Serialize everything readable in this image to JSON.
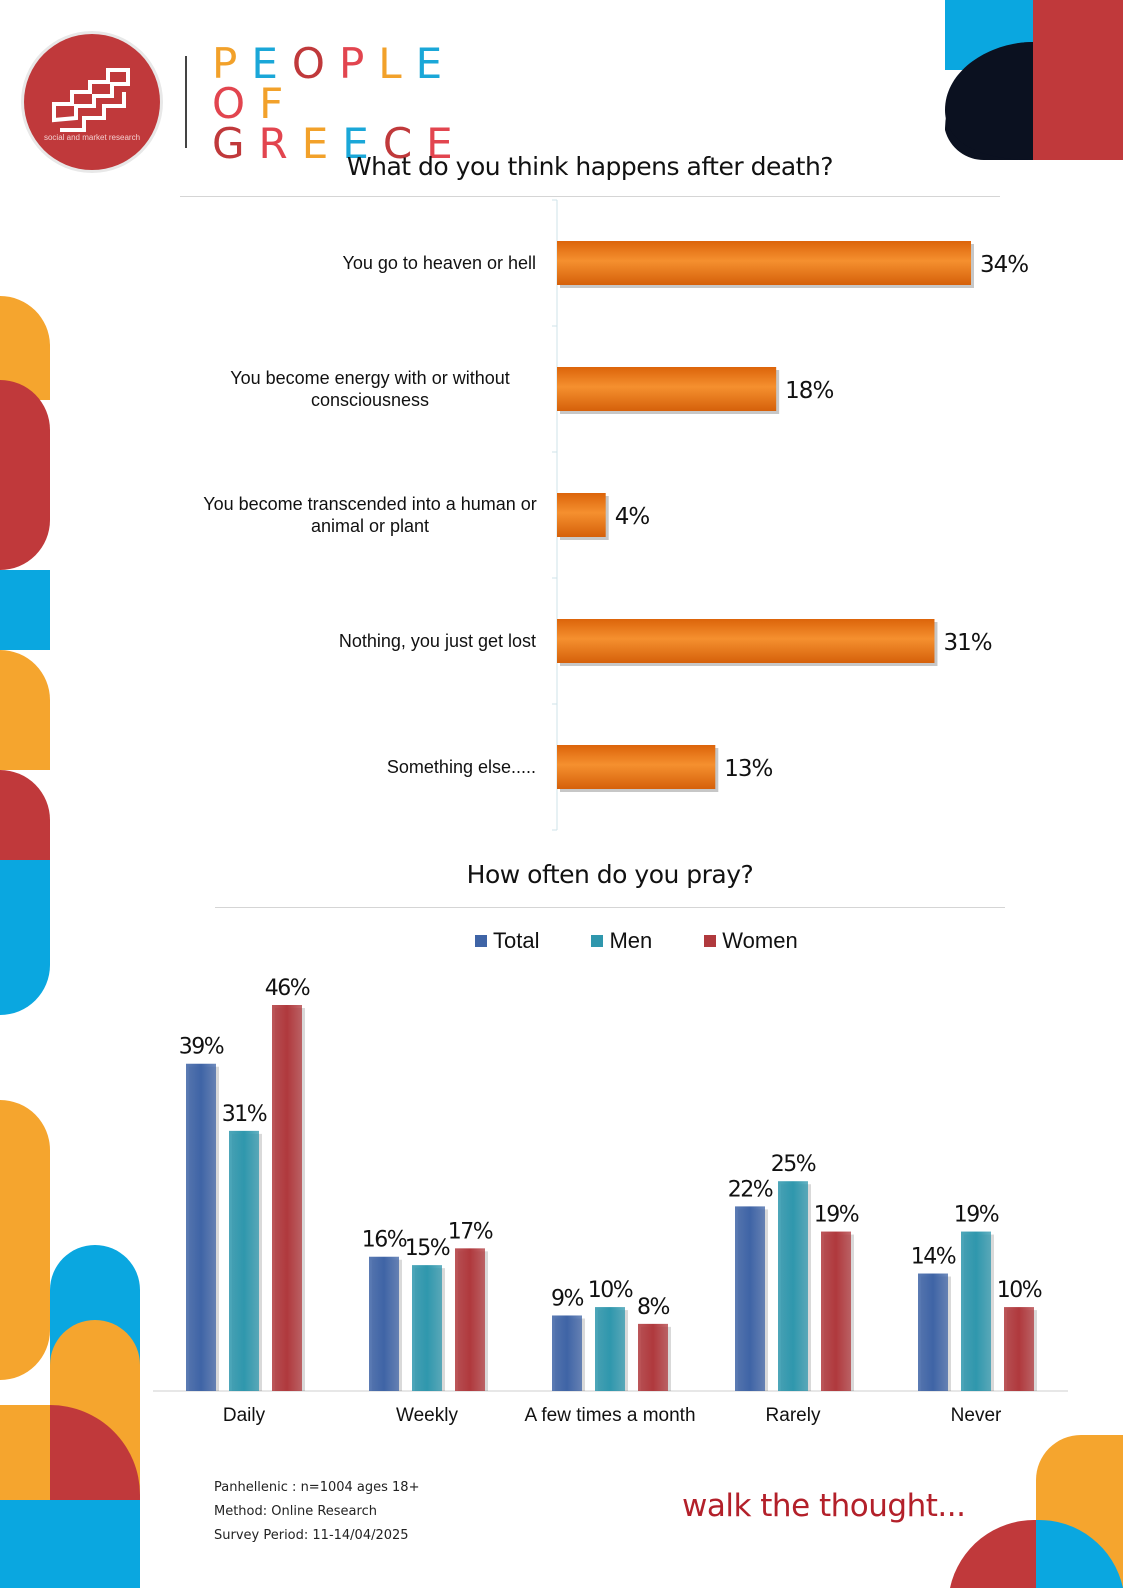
{
  "brand": {
    "logo_text": "social and market research",
    "title_lines": [
      "PEOPLE",
      "OF",
      "GREECE"
    ],
    "letter_colors": [
      "#f2a12a",
      "#1aa7d8",
      "#c0393b",
      "#e2454f",
      "#f2a12a",
      "#1aa7d8",
      "#c0393b",
      "#e2454f"
    ],
    "tagline": "walk the thought..."
  },
  "colors": {
    "orange": "#f39c1f",
    "red": "#c0393b",
    "blue": "#0aa7e0",
    "navy": "#0b1120",
    "bar_orange": "#ec7a18",
    "total": "#3f64a6",
    "men": "#2f97ad",
    "women": "#b0393d"
  },
  "chart_data": [
    {
      "type": "bar",
      "orientation": "horizontal",
      "title": "What do you think happens after death?",
      "categories": [
        "You go to heaven or hell",
        "You become energy with or without consciousness",
        "You become transcended into a human or animal or plant",
        "Nothing, you just get lost",
        "Something else....."
      ],
      "label_lines": [
        [
          "You go to heaven or hell"
        ],
        [
          "You become energy with or without",
          "consciousness"
        ],
        [
          "You become transcended into a human or",
          "animal or plant"
        ],
        [
          "Nothing, you just get lost"
        ],
        [
          "Something else....."
        ]
      ],
      "values": [
        34,
        18,
        4,
        31,
        13
      ],
      "value_labels": [
        "34%",
        "18%",
        "4%",
        "31%",
        "13%"
      ],
      "unit": "%",
      "xlim": [
        0,
        34
      ]
    },
    {
      "type": "bar",
      "orientation": "vertical",
      "title": "How often do you pray?",
      "categories": [
        "Daily",
        "Weekly",
        "A few times a month",
        "Rarely",
        "Never"
      ],
      "series": [
        {
          "name": "Total",
          "values": [
            39,
            16,
            9,
            22,
            14
          ],
          "labels": [
            "39%",
            "16%",
            "9%",
            "22%",
            "14%"
          ]
        },
        {
          "name": "Men",
          "values": [
            31,
            15,
            10,
            25,
            19
          ],
          "labels": [
            "31%",
            "15%",
            "10%",
            "25%",
            "19%"
          ]
        },
        {
          "name": "Women",
          "values": [
            46,
            17,
            8,
            19,
            10
          ],
          "labels": [
            "46%",
            "17%",
            "8%",
            "19%",
            "10%"
          ]
        }
      ],
      "legend": "top-center",
      "unit": "%",
      "ylim": [
        0,
        46
      ]
    }
  ],
  "footer": {
    "lines": [
      "Panhellenic : n=1004 ages 18+",
      "Method: Online Research",
      "Survey Period: 11-14/04/2025"
    ]
  }
}
